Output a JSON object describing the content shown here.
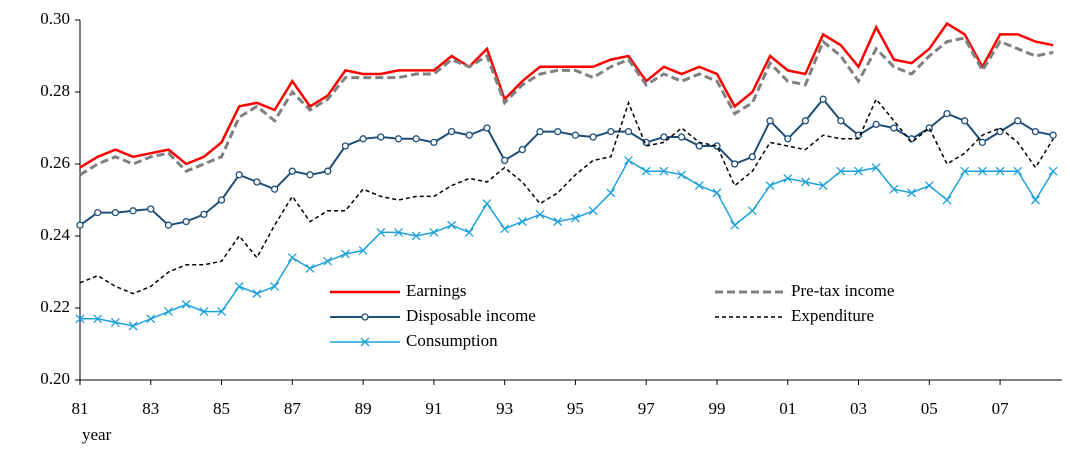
{
  "chart_data": {
    "type": "line",
    "x_label": "year",
    "x": [
      1981,
      1981.5,
      1982,
      1982.5,
      1983,
      1983.5,
      1984,
      1984.5,
      1985,
      1985.5,
      1986,
      1986.5,
      1987,
      1987.5,
      1988,
      1988.5,
      1989,
      1989.5,
      1990,
      1990.5,
      1991,
      1991.5,
      1992,
      1992.5,
      1993,
      1993.5,
      1994,
      1994.5,
      1995,
      1995.5,
      1996,
      1996.5,
      1997,
      1997.5,
      1998,
      1998.5,
      1999,
      1999.5,
      2000,
      2000.5,
      2001,
      2001.5,
      2002,
      2002.5,
      2003,
      2003.5,
      2004,
      2004.5,
      2005,
      2005.5,
      2006,
      2006.5,
      2007,
      2007.5,
      2008,
      2008.5
    ],
    "xlim": [
      1981,
      2008.75
    ],
    "xticks": [
      {
        "value": 1981,
        "label": "81"
      },
      {
        "value": 1983,
        "label": "83"
      },
      {
        "value": 1985,
        "label": "85"
      },
      {
        "value": 1987,
        "label": "87"
      },
      {
        "value": 1989,
        "label": "89"
      },
      {
        "value": 1991,
        "label": "91"
      },
      {
        "value": 1993,
        "label": "93"
      },
      {
        "value": 1995,
        "label": "95"
      },
      {
        "value": 1997,
        "label": "97"
      },
      {
        "value": 1999,
        "label": "99"
      },
      {
        "value": 2001,
        "label": "01"
      },
      {
        "value": 2003,
        "label": "03"
      },
      {
        "value": 2005,
        "label": "05"
      },
      {
        "value": 2007,
        "label": "07"
      }
    ],
    "ylim": [
      0.2,
      0.3
    ],
    "yticks": [
      {
        "value": 0.2,
        "label": "0.20"
      },
      0.22,
      0.24,
      0.26,
      0.28,
      {
        "value": 0.3,
        "label": "0.30"
      }
    ],
    "grid": false,
    "series": [
      {
        "name": "Earnings",
        "color": "#ff0000",
        "dash": "none",
        "width": 2.5,
        "marker": "none",
        "values": [
          0.259,
          0.262,
          0.264,
          0.262,
          0.263,
          0.264,
          0.26,
          0.262,
          0.266,
          0.276,
          0.277,
          0.275,
          0.283,
          0.276,
          0.279,
          0.286,
          0.285,
          0.285,
          0.286,
          0.286,
          0.286,
          0.29,
          0.287,
          0.292,
          0.278,
          0.283,
          0.287,
          0.287,
          0.287,
          0.287,
          0.289,
          0.29,
          0.283,
          0.287,
          0.285,
          0.287,
          0.285,
          0.276,
          0.28,
          0.29,
          0.286,
          0.285,
          0.296,
          0.293,
          0.287,
          0.298,
          0.289,
          0.288,
          0.292,
          0.299,
          0.296,
          0.287,
          0.296,
          0.296,
          0.294,
          0.293
        ]
      },
      {
        "name": "Pre-tax income",
        "color": "#808080",
        "dash": "8,4",
        "width": 3,
        "marker": "none",
        "values": [
          0.257,
          0.26,
          0.262,
          0.26,
          0.262,
          0.263,
          0.258,
          0.26,
          0.262,
          0.273,
          0.276,
          0.272,
          0.28,
          0.275,
          0.278,
          0.284,
          0.284,
          0.284,
          0.284,
          0.285,
          0.285,
          0.289,
          0.287,
          0.29,
          0.277,
          0.282,
          0.285,
          0.286,
          0.286,
          0.284,
          0.287,
          0.289,
          0.282,
          0.285,
          0.283,
          0.285,
          0.283,
          0.274,
          0.277,
          0.288,
          0.283,
          0.282,
          0.294,
          0.29,
          0.283,
          0.292,
          0.287,
          0.285,
          0.29,
          0.294,
          0.295,
          0.286,
          0.294,
          0.292,
          0.29,
          0.291
        ]
      },
      {
        "name": "Disposable income",
        "color": "#1f4e79",
        "dash": "none",
        "width": 2,
        "marker": "circle",
        "values": [
          0.243,
          0.2465,
          0.2465,
          0.247,
          0.2475,
          0.243,
          0.244,
          0.246,
          0.25,
          0.257,
          0.255,
          0.253,
          0.258,
          0.257,
          0.258,
          0.265,
          0.267,
          0.2675,
          0.267,
          0.267,
          0.266,
          0.269,
          0.268,
          0.27,
          0.261,
          0.264,
          0.269,
          0.269,
          0.268,
          0.2675,
          0.269,
          0.269,
          0.266,
          0.2675,
          0.2675,
          0.265,
          0.265,
          0.26,
          0.262,
          0.272,
          0.267,
          0.272,
          0.278,
          0.272,
          0.268,
          0.271,
          0.27,
          0.267,
          0.27,
          0.274,
          0.272,
          0.266,
          0.269,
          0.272,
          0.269,
          0.268
        ]
      },
      {
        "name": "Expenditure",
        "color": "#000000",
        "dash": "4,3",
        "width": 1.5,
        "marker": "none",
        "values": [
          0.227,
          0.229,
          0.226,
          0.224,
          0.226,
          0.23,
          0.232,
          0.232,
          0.233,
          0.24,
          0.234,
          0.243,
          0.251,
          0.244,
          0.247,
          0.247,
          0.253,
          0.251,
          0.25,
          0.251,
          0.251,
          0.254,
          0.256,
          0.255,
          0.259,
          0.255,
          0.249,
          0.252,
          0.257,
          0.261,
          0.262,
          0.277,
          0.265,
          0.266,
          0.27,
          0.266,
          0.265,
          0.254,
          0.258,
          0.266,
          0.265,
          0.264,
          0.268,
          0.267,
          0.267,
          0.278,
          0.272,
          0.266,
          0.27,
          0.26,
          0.263,
          0.268,
          0.27,
          0.266,
          0.259,
          0.267
        ]
      },
      {
        "name": "Consumption",
        "color": "#1ca0dc",
        "dash": "none",
        "width": 1.5,
        "marker": "x",
        "values": [
          0.217,
          0.217,
          0.216,
          0.215,
          0.217,
          0.219,
          0.221,
          0.219,
          0.219,
          0.226,
          0.224,
          0.226,
          0.234,
          0.231,
          0.233,
          0.235,
          0.236,
          0.241,
          0.241,
          0.24,
          0.241,
          0.243,
          0.241,
          0.249,
          0.242,
          0.244,
          0.246,
          0.244,
          0.245,
          0.247,
          0.252,
          0.261,
          0.258,
          0.258,
          0.257,
          0.254,
          0.252,
          0.243,
          0.247,
          0.254,
          0.256,
          0.255,
          0.254,
          0.258,
          0.258,
          0.259,
          0.253,
          0.252,
          0.254,
          0.25,
          0.258,
          0.258,
          0.258,
          0.258,
          0.25,
          0.258
        ]
      }
    ]
  }
}
